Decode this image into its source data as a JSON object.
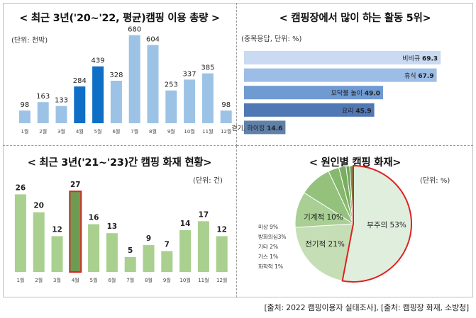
{
  "panels": {
    "usage": {
      "title": "<  최근 3년('20~'22, 평균)캠핑 이용 총량  >",
      "unit": "(단위: 천박)"
    },
    "activity": {
      "title": "<  캠핑장에서 많이 하는 활동 5위>",
      "unit": "(중복응답, 단위: %)"
    },
    "fire": {
      "title": "<  최근 3년('21~'23)간 캠핑 화재 현황>",
      "unit": "(단위: 건)"
    },
    "cause": {
      "title": "<  원인별 캠핑 화재>",
      "unit": "(단위: %)"
    }
  },
  "source": "[출처: 2022 캠핑이용자 실태조사], [출처: 캠핑장 화재, 소방청]",
  "colors": {
    "usage_bar": "#9cc3e6",
    "usage_highlight": "#0f6fc6",
    "activity_bars": [
      "#c9daf2",
      "#9cbde6",
      "#6f9ad2",
      "#4f78b5",
      "#5f80a8"
    ],
    "fire_bar": "#a9d08e",
    "fire_highlight": "#6f9a52",
    "fire_highlight_border": "#e02020",
    "pie_main": "#dfeedd",
    "pie_border": "#e02020",
    "pie_green": "#9fc98a"
  },
  "chart_data": [
    {
      "type": "bar",
      "categories": [
        "1월",
        "2월",
        "3월",
        "4월",
        "5월",
        "6월",
        "7월",
        "8월",
        "9월",
        "10월",
        "11월",
        "12월"
      ],
      "values": [
        98,
        163,
        133,
        284,
        439,
        328,
        680,
        604,
        253,
        337,
        385,
        98
      ],
      "highlight": [
        "4월",
        "5월"
      ],
      "title": "<  최근 3년('20~'22, 평균)캠핑 이용 총량  >",
      "ylim": [
        0,
        700
      ],
      "grid": false
    },
    {
      "type": "bar",
      "orientation": "horizontal",
      "categories": [
        "비비큐",
        "휴식",
        "모닥불 놀이",
        "요리",
        "걷기, 하이킹"
      ],
      "values": [
        69.3,
        67.9,
        49.0,
        45.9,
        14.6
      ],
      "value_labels": [
        "69.3",
        "67.9",
        "49.0",
        "45.9",
        "14.6"
      ],
      "title": "<  캠핑장에서 많이 하는 활동 5위>",
      "xlim": [
        0,
        72
      ]
    },
    {
      "type": "bar",
      "categories": [
        "1월",
        "2월",
        "3월",
        "4월",
        "5월",
        "6월",
        "7월",
        "8월",
        "9월",
        "10월",
        "11월",
        "12월"
      ],
      "values": [
        26,
        20,
        12,
        27,
        16,
        13,
        5,
        9,
        7,
        14,
        17,
        12
      ],
      "highlight": [
        "4월"
      ],
      "title": "<  최근 3년('21~'23)간 캠핑 화재 현황>",
      "ylim": [
        0,
        28
      ]
    },
    {
      "type": "pie",
      "labels": [
        "부주의",
        "전기적",
        "기계적",
        "미상",
        "방화의심",
        "기타",
        "가스",
        "화학적"
      ],
      "values": [
        53,
        21,
        10,
        9,
        3,
        2,
        1,
        1
      ],
      "display_labels": [
        "부주의 53%",
        "전기적 21%",
        "기계적 10%",
        "미상 9%",
        "방화의심3%",
        "기타 2%",
        "가스 1%",
        "화학적 1%"
      ],
      "title": "<  원인별 캠핑 화재>"
    }
  ]
}
